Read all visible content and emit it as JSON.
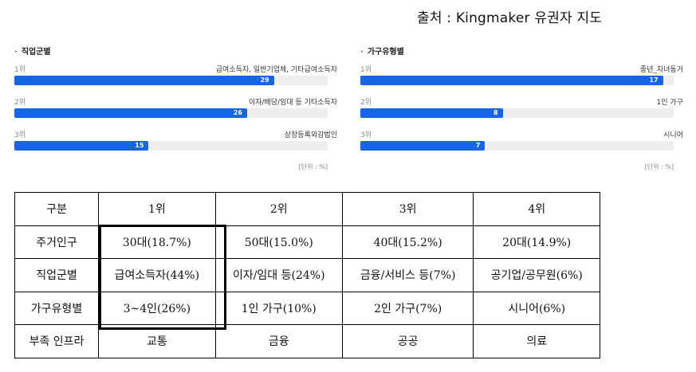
{
  "source_text": "출처 : Kingmaker 유권자 지도",
  "chart_data": [
    {
      "type": "bar",
      "orientation": "horizontal",
      "title": "직업군별",
      "unit_label": "[단위 : %]",
      "items": [
        {
          "rank": "1위",
          "category": "급여소득자, 일반기업체, 기타급여소득자",
          "value": 29
        },
        {
          "rank": "2위",
          "category": "이자/배당/임대 등 기타소득자",
          "value": 26
        },
        {
          "rank": "3위",
          "category": "상장등록외감법인",
          "value": 15
        }
      ],
      "xlim": [
        0,
        35
      ],
      "grid": false,
      "colors": {
        "bar": "#1565e4",
        "track": "#eeeeee"
      }
    },
    {
      "type": "bar",
      "orientation": "horizontal",
      "title": "가구유형별",
      "unit_label": "[단위 : %]",
      "items": [
        {
          "rank": "1위",
          "category": "중년_자녀동거",
          "value": 17
        },
        {
          "rank": "2위",
          "category": "1인 가구",
          "value": 8
        },
        {
          "rank": "3위",
          "category": "시니어",
          "value": 7
        }
      ],
      "xlim": [
        0,
        17.6
      ],
      "grid": false,
      "colors": {
        "bar": "#1565e4",
        "track": "#eeeeee"
      }
    }
  ],
  "table": {
    "headers": [
      "구분",
      "1위",
      "2위",
      "3위",
      "4위"
    ],
    "rows": [
      [
        "주거인구",
        "30대(18.7%)",
        "50대(15.0%)",
        "40대(15.2%)",
        "20대(14.9%)"
      ],
      [
        "직업군별",
        "급여소득자(44%)",
        "이자/임대 등(24%)",
        "금융/서비스 등(7%)",
        "공기업/공무원(6%)"
      ],
      [
        "가구유형별",
        "3~4인(26%)",
        "1인 가구(10%)",
        "2인 가구(7%)",
        "시니어(6%)"
      ],
      [
        "부족 인프라",
        "교통",
        "금융",
        "공공",
        "의료"
      ]
    ]
  }
}
